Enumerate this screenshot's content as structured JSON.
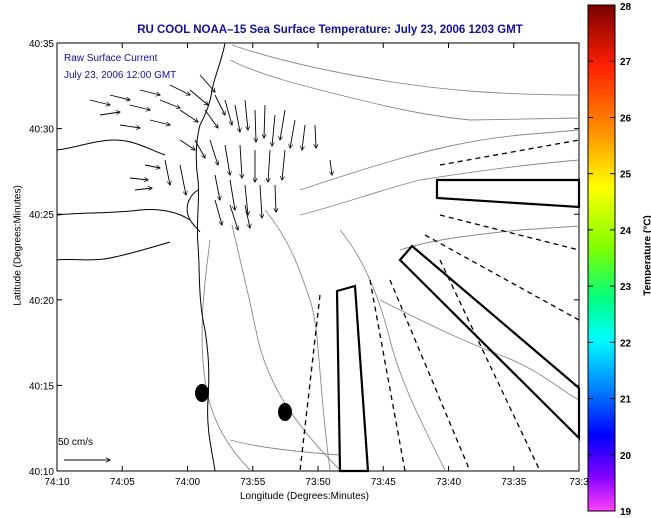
{
  "title": "RU COOL  NOAA–15  Sea Surface Temperature:  July 23, 2006 1203 GMT",
  "legend": {
    "line1": "Raw Surface Current",
    "line2": "July 23, 2006 12:00 GMT"
  },
  "scale_label": "50 cm/s",
  "axes": {
    "xlabel": "Longitude (Degrees:Minutes)",
    "ylabel": "Latitude (Degrees:Minutes)",
    "x_ticks": [
      "74:10",
      "74:05",
      "74:00",
      "73:55",
      "73:50",
      "73:45",
      "73:40",
      "73:35",
      "73:3"
    ],
    "y_ticks": [
      "40:35",
      "40:30",
      "40:25",
      "40:20",
      "40:15",
      "40:10"
    ]
  },
  "colorbar": {
    "label": "Temperature (°C)",
    "ticks": [
      "28",
      "27",
      "26",
      "25",
      "24",
      "23",
      "22",
      "21",
      "20",
      "19"
    ],
    "range": [
      19,
      28
    ]
  },
  "colors": {
    "title": "#1010a0",
    "land_line": "#000000",
    "bathymetry": "#888888"
  },
  "markers": [
    {
      "name": "dot-1",
      "lon_minutes": -58.8,
      "lat_minutes": 14.7
    },
    {
      "name": "dot-2",
      "lon_minutes": -52.2,
      "lat_minutes": 13.5
    }
  ]
}
